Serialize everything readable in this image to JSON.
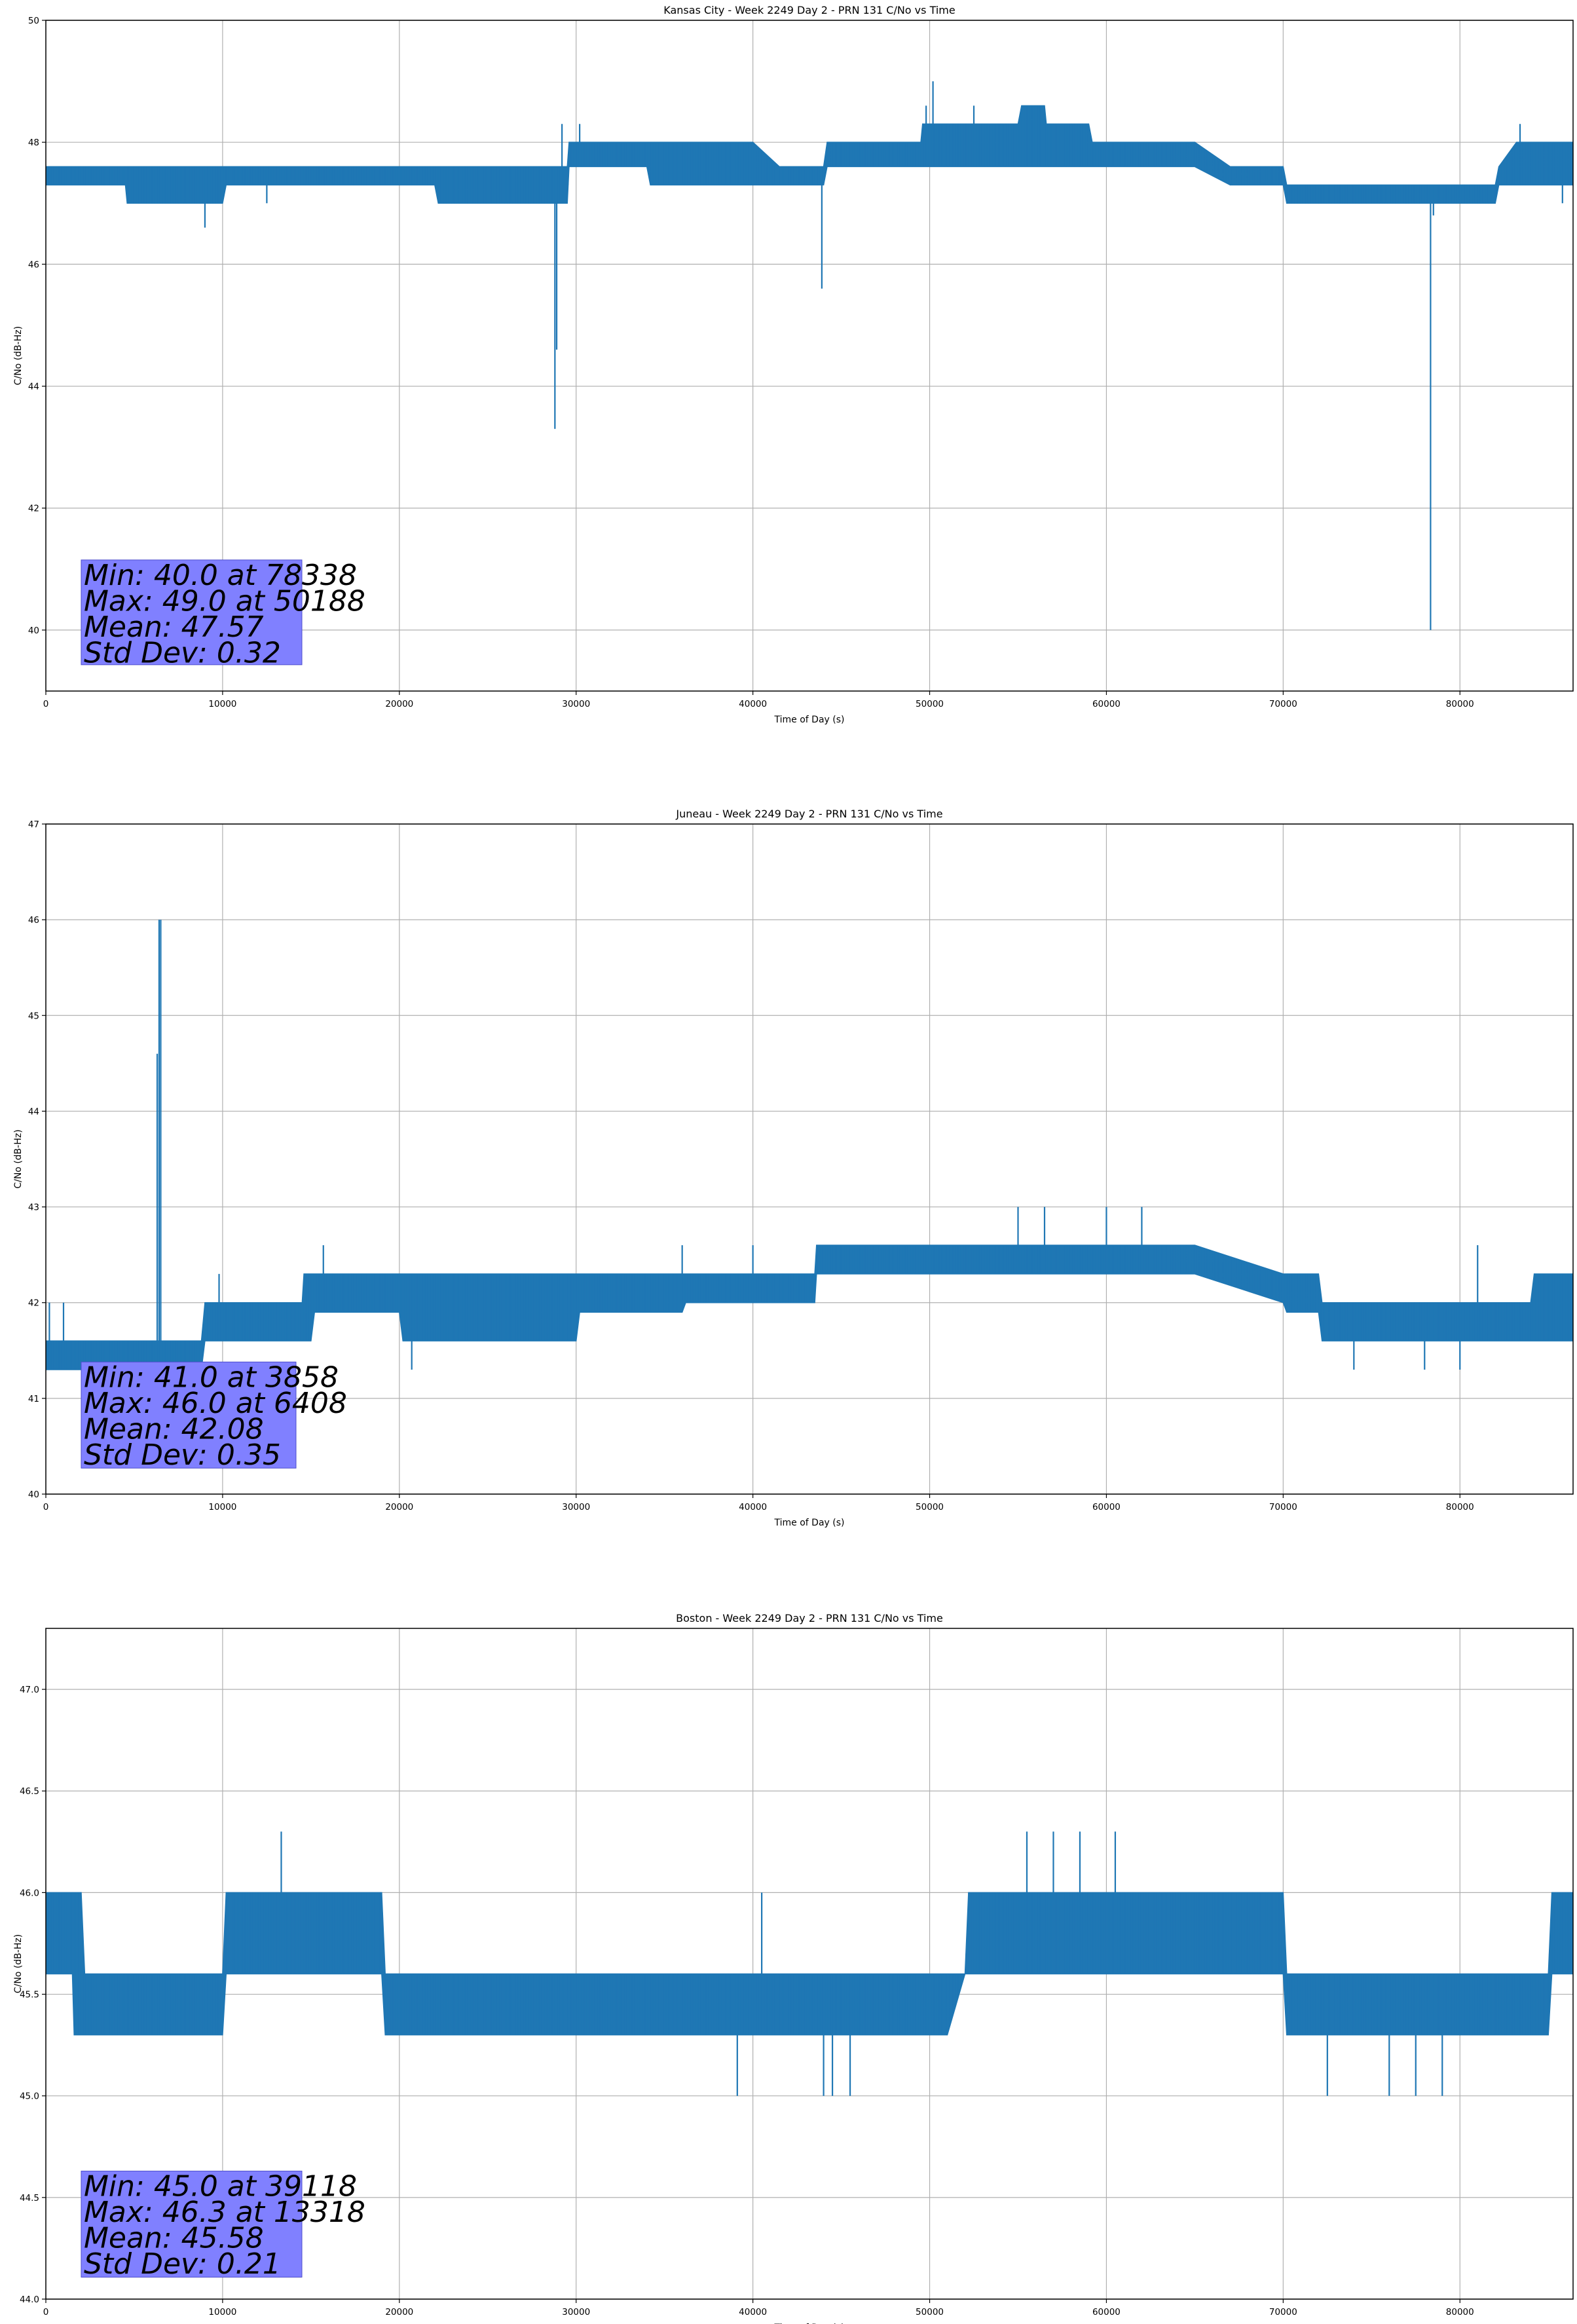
{
  "chart_data": [
    {
      "type": "line",
      "title": "Kansas City - Week 2249 Day 2 - PRN 131 C/No vs Time",
      "xlabel": "Time of Day (s)",
      "ylabel": "C/No (dB-Hz)",
      "xlim": [
        0,
        86400
      ],
      "ylim": [
        39,
        50
      ],
      "xticks": [
        0,
        10000,
        20000,
        30000,
        40000,
        50000,
        60000,
        70000,
        80000
      ],
      "yticks": [
        40,
        42,
        44,
        46,
        48,
        50
      ],
      "ytick_labels": [
        "40",
        "42",
        "44",
        "46",
        "48",
        "50"
      ],
      "grid": true,
      "color": "#1f77b4",
      "stats": [
        "Min: 40.0 at 78338",
        "Max: 49.0 at 50188",
        "Mean: 47.57",
        "Std Dev: 0.32"
      ],
      "series": [
        {
          "band_lo": [
            [
              0,
              47.3
            ],
            [
              4500,
              47.3
            ],
            [
              4600,
              47.0
            ],
            [
              10000,
              47.0
            ],
            [
              10200,
              47.3
            ],
            [
              22000,
              47.3
            ],
            [
              22200,
              47.0
            ],
            [
              29500,
              47.0
            ],
            [
              29600,
              47.6
            ],
            [
              34000,
              47.6
            ],
            [
              34200,
              47.3
            ],
            [
              44000,
              47.3
            ],
            [
              44200,
              47.6
            ],
            [
              52000,
              47.6
            ],
            [
              52200,
              47.6
            ],
            [
              56000,
              47.6
            ],
            [
              59000,
              47.6
            ],
            [
              65000,
              47.6
            ],
            [
              67000,
              47.3
            ],
            [
              70000,
              47.3
            ],
            [
              70200,
              47.0
            ],
            [
              82000,
              47.0
            ],
            [
              82200,
              47.3
            ],
            [
              86400,
              47.3
            ]
          ],
          "band_hi": [
            [
              0,
              47.6
            ],
            [
              29500,
              47.6
            ],
            [
              29600,
              48.0
            ],
            [
              40000,
              48.0
            ],
            [
              41500,
              47.6
            ],
            [
              44000,
              47.6
            ],
            [
              44200,
              48.0
            ],
            [
              49500,
              48.0
            ],
            [
              49600,
              48.3
            ],
            [
              55000,
              48.3
            ],
            [
              55200,
              48.6
            ],
            [
              56500,
              48.6
            ],
            [
              56600,
              48.3
            ],
            [
              59000,
              48.3
            ],
            [
              59200,
              48.0
            ],
            [
              65000,
              48.0
            ],
            [
              67000,
              47.6
            ],
            [
              70000,
              47.6
            ],
            [
              70200,
              47.3
            ],
            [
              82000,
              47.3
            ],
            [
              82200,
              47.6
            ],
            [
              83200,
              48.0
            ],
            [
              86400,
              48.0
            ]
          ],
          "spikes": [
            [
              9000,
              46.6
            ],
            [
              12500,
              47.0
            ],
            [
              28800,
              43.3
            ],
            [
              28900,
              44.6
            ],
            [
              29200,
              48.3
            ],
            [
              30200,
              48.3
            ],
            [
              43900,
              45.6
            ],
            [
              50188,
              49.0
            ],
            [
              49800,
              48.6
            ],
            [
              52500,
              48.6
            ],
            [
              54000,
              48.3
            ],
            [
              55600,
              48.6
            ],
            [
              78338,
              40.0
            ],
            [
              78500,
              46.8
            ],
            [
              83400,
              48.3
            ],
            [
              85800,
              47.0
            ]
          ]
        }
      ]
    },
    {
      "type": "line",
      "title": "Juneau - Week 2249 Day 2 - PRN 131 C/No vs Time",
      "xlabel": "Time of Day (s)",
      "ylabel": "C/No (dB-Hz)",
      "xlim": [
        0,
        86400
      ],
      "ylim": [
        40,
        47
      ],
      "xticks": [
        0,
        10000,
        20000,
        30000,
        40000,
        50000,
        60000,
        70000,
        80000
      ],
      "yticks": [
        40,
        41,
        42,
        43,
        44,
        45,
        46,
        47
      ],
      "ytick_labels": [
        "40",
        "41",
        "42",
        "43",
        "44",
        "45",
        "46",
        "47"
      ],
      "grid": true,
      "color": "#1f77b4",
      "stats": [
        "Min: 41.0 at 3858",
        "Max: 46.0 at 6408",
        "Mean: 42.08",
        "Std Dev: 0.35"
      ],
      "series": [
        {
          "band_lo": [
            [
              0,
              41.3
            ],
            [
              8800,
              41.3
            ],
            [
              9000,
              41.6
            ],
            [
              15000,
              41.6
            ],
            [
              15200,
              41.9
            ],
            [
              20000,
              41.9
            ],
            [
              20200,
              41.6
            ],
            [
              30000,
              41.6
            ],
            [
              30200,
              41.9
            ],
            [
              36000,
              41.9
            ],
            [
              36200,
              42.0
            ],
            [
              43500,
              42.0
            ],
            [
              43600,
              42.3
            ],
            [
              55000,
              42.3
            ],
            [
              65000,
              42.3
            ],
            [
              70000,
              42.0
            ],
            [
              70200,
              41.9
            ],
            [
              72000,
              41.9
            ],
            [
              72200,
              41.6
            ],
            [
              86400,
              41.6
            ]
          ],
          "band_hi": [
            [
              0,
              41.6
            ],
            [
              8800,
              41.6
            ],
            [
              9000,
              42.0
            ],
            [
              14500,
              42.0
            ],
            [
              14600,
              42.3
            ],
            [
              36000,
              42.3
            ],
            [
              36200,
              42.3
            ],
            [
              43500,
              42.3
            ],
            [
              43600,
              42.6
            ],
            [
              65000,
              42.6
            ],
            [
              70000,
              42.3
            ],
            [
              72000,
              42.3
            ],
            [
              72200,
              42.0
            ],
            [
              84000,
              42.0
            ],
            [
              84200,
              42.3
            ],
            [
              86400,
              42.3
            ]
          ],
          "spikes": [
            [
              200,
              42.0
            ],
            [
              1000,
              42.0
            ],
            [
              3858,
              41.0
            ],
            [
              4000,
              41.0
            ],
            [
              6300,
              44.6
            ],
            [
              6408,
              46.0
            ],
            [
              6500,
              46.0
            ],
            [
              9800,
              42.3
            ],
            [
              15700,
              42.6
            ],
            [
              20700,
              41.3
            ],
            [
              36000,
              42.6
            ],
            [
              40000,
              42.6
            ],
            [
              55000,
              43.0
            ],
            [
              56500,
              43.0
            ],
            [
              60000,
              43.0
            ],
            [
              62000,
              43.0
            ],
            [
              74000,
              41.3
            ],
            [
              78000,
              41.3
            ],
            [
              80000,
              41.3
            ],
            [
              81000,
              42.6
            ]
          ]
        }
      ]
    },
    {
      "type": "line",
      "title": "Boston - Week 2249 Day 2 - PRN 131 C/No vs Time",
      "xlabel": "Time of Day (s)",
      "ylabel": "C/No (dB-Hz)",
      "xlim": [
        0,
        86400
      ],
      "ylim": [
        44.0,
        47.3
      ],
      "xticks": [
        0,
        10000,
        20000,
        30000,
        40000,
        50000,
        60000,
        70000,
        80000
      ],
      "yticks": [
        44.0,
        44.5,
        45.0,
        45.5,
        46.0,
        46.5,
        47.0
      ],
      "ytick_labels": [
        "44.0",
        "44.5",
        "45.0",
        "45.5",
        "46.0",
        "46.5",
        "47.0"
      ],
      "grid": true,
      "color": "#1f77b4",
      "stats": [
        "Min: 45.0 at 39118",
        "Max: 46.3 at 13318",
        "Mean: 45.58",
        "Std Dev: 0.21"
      ],
      "series": [
        {
          "band_lo": [
            [
              0,
              45.6
            ],
            [
              1500,
              45.6
            ],
            [
              1600,
              45.3
            ],
            [
              10000,
              45.3
            ],
            [
              10200,
              45.6
            ],
            [
              19000,
              45.6
            ],
            [
              19200,
              45.3
            ],
            [
              51000,
              45.3
            ],
            [
              52000,
              45.6
            ],
            [
              70000,
              45.6
            ],
            [
              70200,
              45.3
            ],
            [
              85000,
              45.3
            ],
            [
              85200,
              45.6
            ],
            [
              86400,
              45.6
            ]
          ],
          "band_hi": [
            [
              0,
              46.0
            ],
            [
              2000,
              46.0
            ],
            [
              2200,
              45.6
            ],
            [
              10000,
              45.6
            ],
            [
              10200,
              46.0
            ],
            [
              19000,
              46.0
            ],
            [
              19200,
              45.6
            ],
            [
              52000,
              45.6
            ],
            [
              52200,
              46.0
            ],
            [
              70000,
              46.0
            ],
            [
              70200,
              45.6
            ],
            [
              85000,
              45.6
            ],
            [
              85200,
              46.0
            ],
            [
              86400,
              46.0
            ]
          ],
          "spikes": [
            [
              13318,
              46.3
            ],
            [
              55500,
              46.3
            ],
            [
              57000,
              46.3
            ],
            [
              58500,
              46.3
            ],
            [
              60500,
              46.3
            ],
            [
              39118,
              45.0
            ],
            [
              44000,
              45.0
            ],
            [
              44500,
              45.0
            ],
            [
              45500,
              45.0
            ],
            [
              72500,
              45.0
            ],
            [
              76000,
              45.0
            ],
            [
              77500,
              45.0
            ],
            [
              79000,
              45.0
            ],
            [
              40500,
              46.0
            ],
            [
              3000,
              45.3
            ],
            [
              35000,
              45.3
            ]
          ]
        }
      ]
    }
  ]
}
